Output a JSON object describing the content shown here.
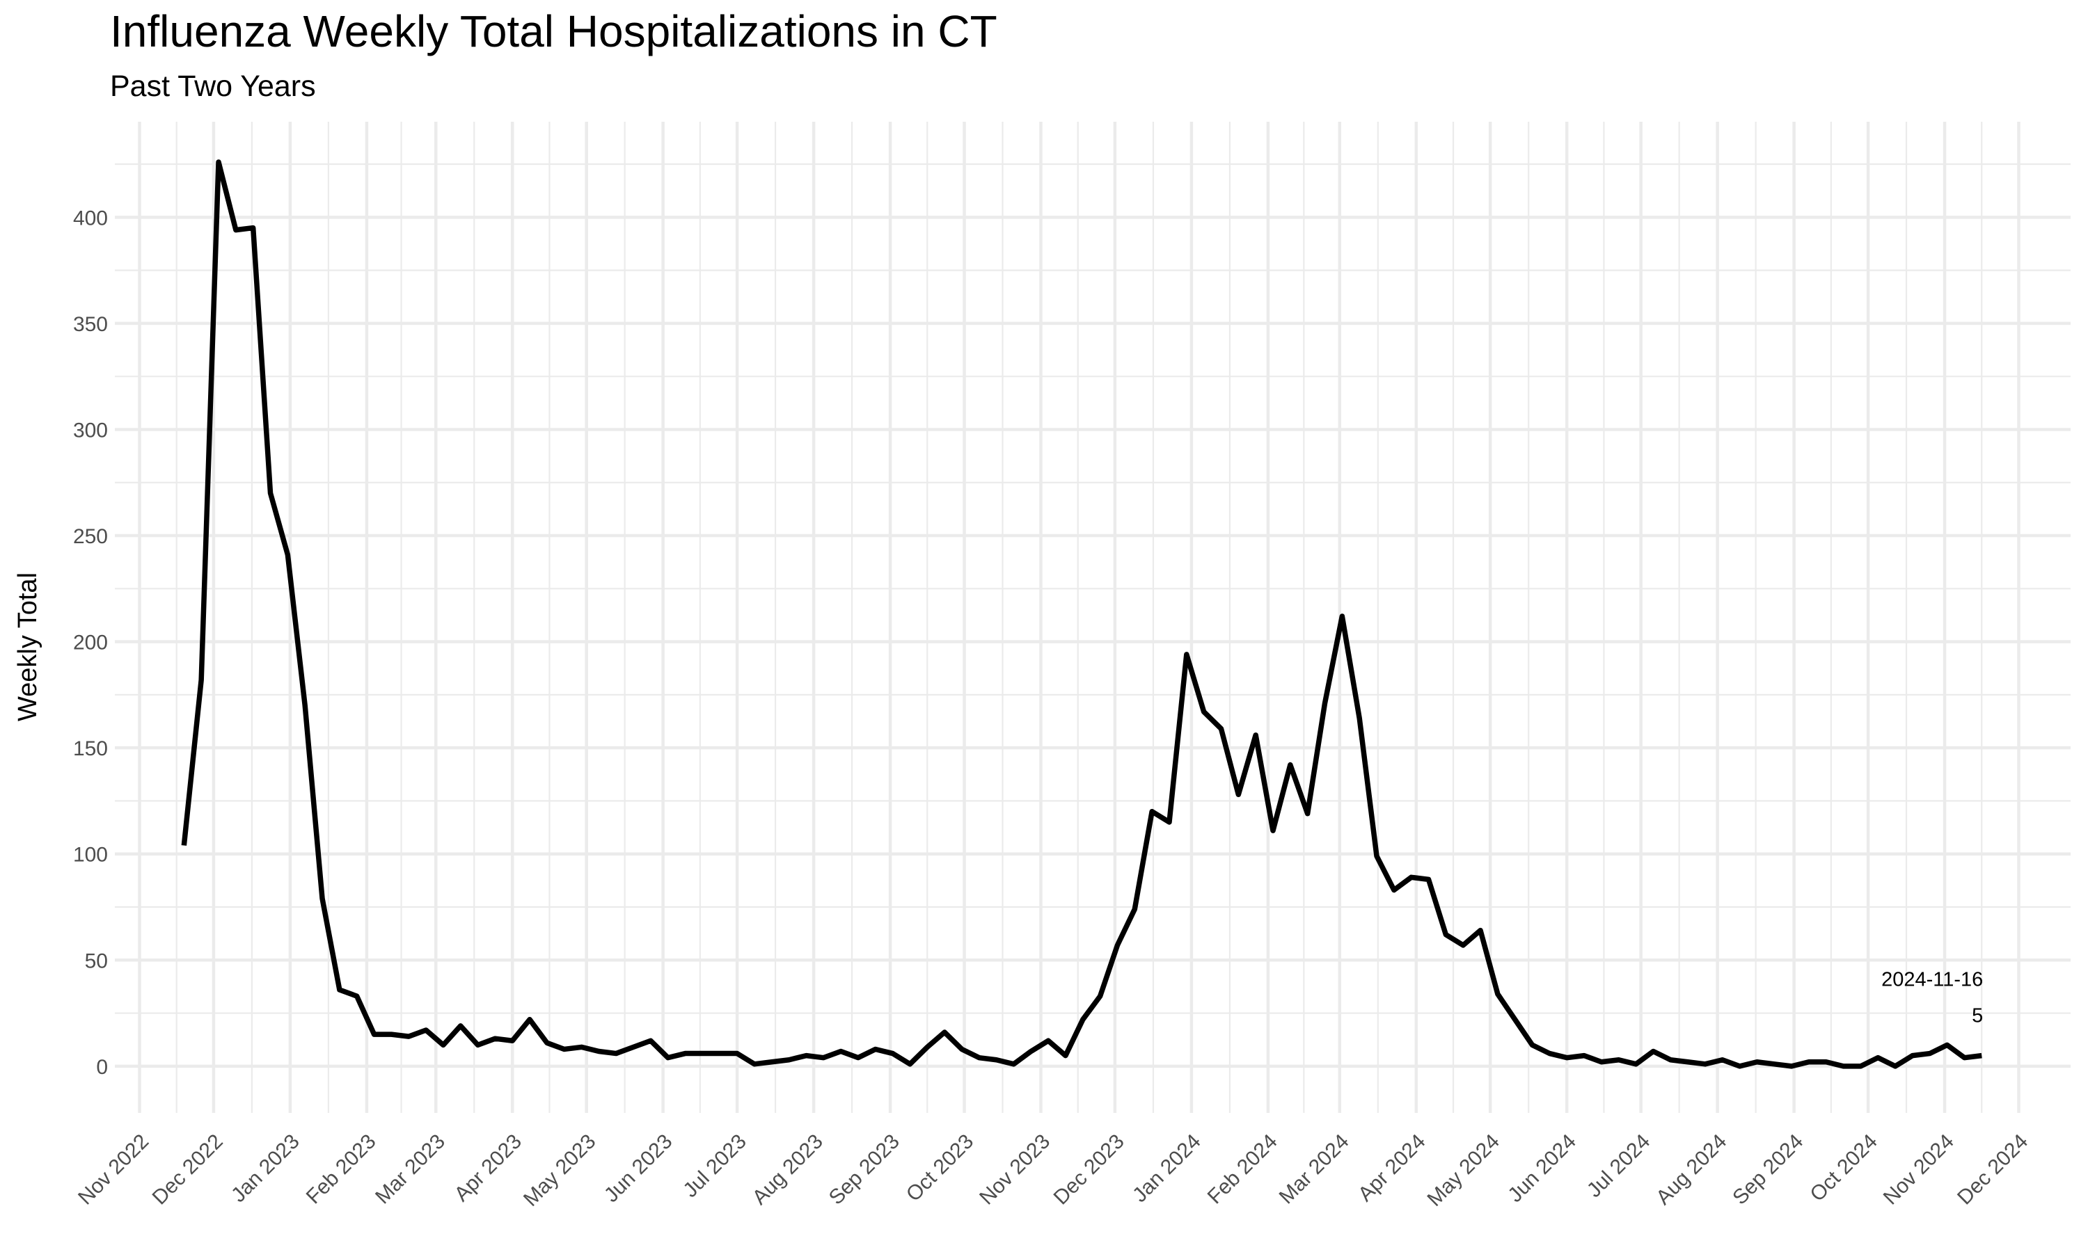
{
  "chart_data": {
    "type": "line",
    "title": "Influenza Weekly Total Hospitalizations in CT",
    "subtitle": "Past Two Years",
    "xlabel": "",
    "ylabel": "Weekly Total",
    "ylim": [
      -22,
      445
    ],
    "xlim": [
      "2022-10-22",
      "2024-12-22"
    ],
    "y_ticks": [
      0,
      50,
      100,
      150,
      200,
      250,
      300,
      350,
      400
    ],
    "x_ticks": [
      "2022-11-01",
      "2022-12-01",
      "2023-01-01",
      "2023-02-01",
      "2023-03-01",
      "2023-04-01",
      "2023-05-01",
      "2023-06-01",
      "2023-07-01",
      "2023-08-01",
      "2023-09-01",
      "2023-10-01",
      "2023-11-01",
      "2023-12-01",
      "2024-01-01",
      "2024-02-01",
      "2024-03-01",
      "2024-04-01",
      "2024-05-01",
      "2024-06-01",
      "2024-07-01",
      "2024-08-01",
      "2024-09-01",
      "2024-10-01",
      "2024-11-01",
      "2024-12-01"
    ],
    "x_tick_labels": [
      "Nov 2022",
      "Dec 2022",
      "Jan 2023",
      "Feb 2023",
      "Mar 2023",
      "Apr 2023",
      "May 2023",
      "Jun 2023",
      "Jul 2023",
      "Aug 2023",
      "Sep 2023",
      "Oct 2023",
      "Nov 2023",
      "Dec 2023",
      "Jan 2024",
      "Feb 2024",
      "Mar 2024",
      "Apr 2024",
      "May 2024",
      "Jun 2024",
      "Jul 2024",
      "Aug 2024",
      "Sep 2024",
      "Oct 2024",
      "Nov 2024",
      "Dec 2024"
    ],
    "grid": true,
    "legend": "none",
    "line_color": "#000000",
    "grid_color": "#ebebeb",
    "series": [
      {
        "x": [
          "2022-11-19",
          "2022-11-26",
          "2022-12-03",
          "2022-12-10",
          "2022-12-17",
          "2022-12-24",
          "2022-12-31",
          "2023-01-07",
          "2023-01-14",
          "2023-01-21",
          "2023-01-28",
          "2023-02-04",
          "2023-02-11",
          "2023-02-18",
          "2023-02-25",
          "2023-03-04",
          "2023-03-11",
          "2023-03-18",
          "2023-03-25",
          "2023-04-01",
          "2023-04-08",
          "2023-04-15",
          "2023-04-22",
          "2023-04-29",
          "2023-05-06",
          "2023-05-13",
          "2023-05-20",
          "2023-05-27",
          "2023-06-03",
          "2023-06-10",
          "2023-06-17",
          "2023-06-24",
          "2023-07-01",
          "2023-07-08",
          "2023-07-15",
          "2023-07-22",
          "2023-07-29",
          "2023-08-05",
          "2023-08-12",
          "2023-08-19",
          "2023-08-26",
          "2023-09-02",
          "2023-09-09",
          "2023-09-16",
          "2023-09-23",
          "2023-09-30",
          "2023-10-07",
          "2023-10-14",
          "2023-10-21",
          "2023-10-28",
          "2023-11-04",
          "2023-11-11",
          "2023-11-18",
          "2023-11-25",
          "2023-12-02",
          "2023-12-09",
          "2023-12-16",
          "2023-12-23",
          "2023-12-30",
          "2024-01-06",
          "2024-01-13",
          "2024-01-20",
          "2024-01-27",
          "2024-02-03",
          "2024-02-10",
          "2024-02-17",
          "2024-02-24",
          "2024-03-02",
          "2024-03-09",
          "2024-03-16",
          "2024-03-23",
          "2024-03-30",
          "2024-04-06",
          "2024-04-13",
          "2024-04-20",
          "2024-04-27",
          "2024-05-04",
          "2024-05-11",
          "2024-05-18",
          "2024-05-25",
          "2024-06-01",
          "2024-06-08",
          "2024-06-15",
          "2024-06-22",
          "2024-06-29",
          "2024-07-06",
          "2024-07-13",
          "2024-07-20",
          "2024-07-27",
          "2024-08-03",
          "2024-08-10",
          "2024-08-17",
          "2024-08-24",
          "2024-08-31",
          "2024-09-07",
          "2024-09-14",
          "2024-09-21",
          "2024-09-28",
          "2024-10-05",
          "2024-10-12",
          "2024-10-19",
          "2024-10-26",
          "2024-11-02",
          "2024-11-09",
          "2024-11-16"
        ],
        "y": [
          104,
          182,
          426,
          394,
          395,
          270,
          241,
          170,
          79,
          36,
          33,
          15,
          15,
          14,
          17,
          10,
          19,
          10,
          13,
          12,
          22,
          11,
          8,
          9,
          7,
          6,
          9,
          12,
          4,
          6,
          6,
          6,
          6,
          1,
          2,
          3,
          5,
          4,
          7,
          4,
          8,
          6,
          1,
          9,
          16,
          8,
          4,
          3,
          1,
          7,
          12,
          5,
          22,
          33,
          57,
          74,
          120,
          115,
          194,
          167,
          159,
          128,
          156,
          111,
          142,
          119,
          171,
          212,
          164,
          99,
          83,
          89,
          88,
          62,
          57,
          64,
          34,
          22,
          10,
          6,
          4,
          5,
          2,
          3,
          1,
          7,
          3,
          2,
          1,
          3,
          0,
          2,
          1,
          0,
          2,
          2,
          0,
          0,
          4,
          0,
          5,
          6,
          10,
          4,
          5
        ]
      }
    ],
    "annotations": [
      {
        "x": "2024-11-16",
        "y": 5,
        "lines": [
          "2024-11-16",
          "5"
        ]
      }
    ]
  }
}
